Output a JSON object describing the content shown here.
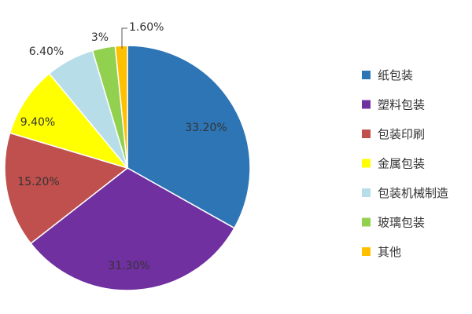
{
  "chart_data": {
    "type": "pie",
    "title": "",
    "categories": [
      "纸包装",
      "塑料包装",
      "包装印刷",
      "金属包装",
      "包装机械制造",
      "玻璃包装",
      "其他"
    ],
    "values": [
      33.2,
      31.3,
      15.2,
      9.4,
      6.4,
      3.0,
      1.6
    ],
    "value_labels": [
      "33.20%",
      "31.30%",
      "15.20%",
      "9.40%",
      "6.40%",
      "3%",
      "1.60%"
    ],
    "colors": [
      "#2E75B6",
      "#7030A0",
      "#C0504D",
      "#FFFF00",
      "#B7DEE8",
      "#92D050",
      "#FFC000"
    ],
    "start_angle": "12 o'clock",
    "direction": "clockwise",
    "legend": "right"
  }
}
